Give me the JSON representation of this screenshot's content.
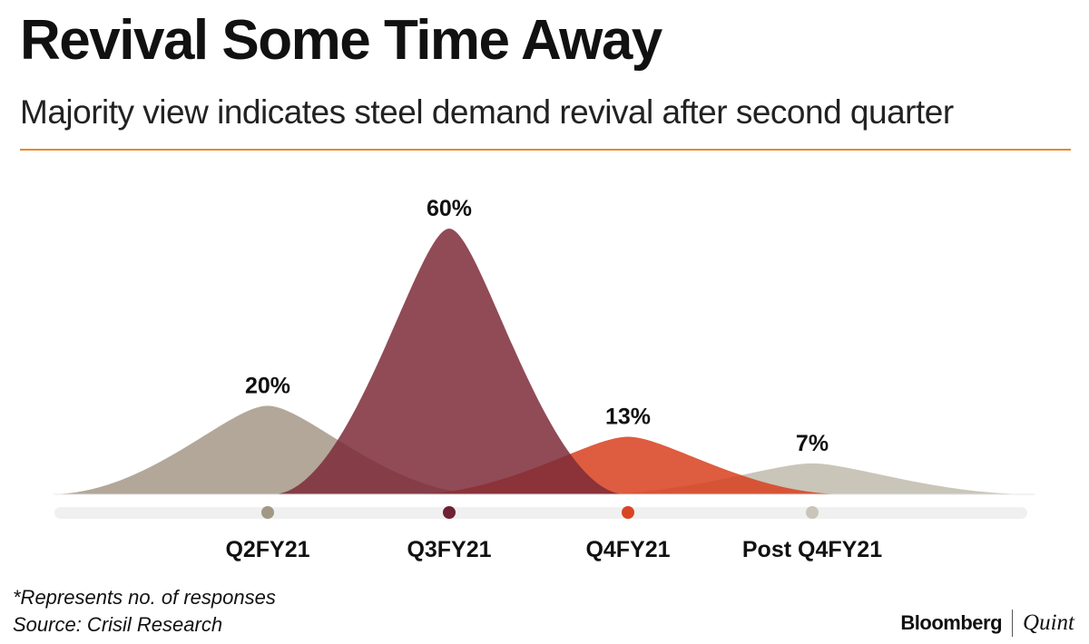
{
  "header": {
    "title": "Revival Some Time Away",
    "subtitle": "Majority view indicates steel demand revival after second quarter"
  },
  "chart_data": {
    "type": "area",
    "title": "Revival Some Time Away",
    "subtitle": "Majority view indicates steel demand revival after second quarter",
    "xlabel": "",
    "ylabel": "",
    "categories": [
      "Q2FY21",
      "Q3FY21",
      "Q4FY21",
      "Post Q4FY21"
    ],
    "values": [
      20,
      60,
      13,
      7
    ],
    "value_labels": [
      "20%",
      "60%",
      "13%",
      "7%"
    ],
    "unit": "%",
    "ylim": [
      0,
      60
    ],
    "grid": false,
    "legend": "none",
    "colors": [
      "#ab9f90",
      "#7c2b38",
      "#d8401f",
      "#bfbbab"
    ],
    "marker_colors": [
      "#a39786",
      "#6e2233",
      "#d94524",
      "#c9c5b8"
    ]
  },
  "footer": {
    "note": "*Represents no. of responses",
    "source": "Source: Crisil Research",
    "brand_primary": "Bloomberg",
    "brand_secondary": "Quint"
  }
}
